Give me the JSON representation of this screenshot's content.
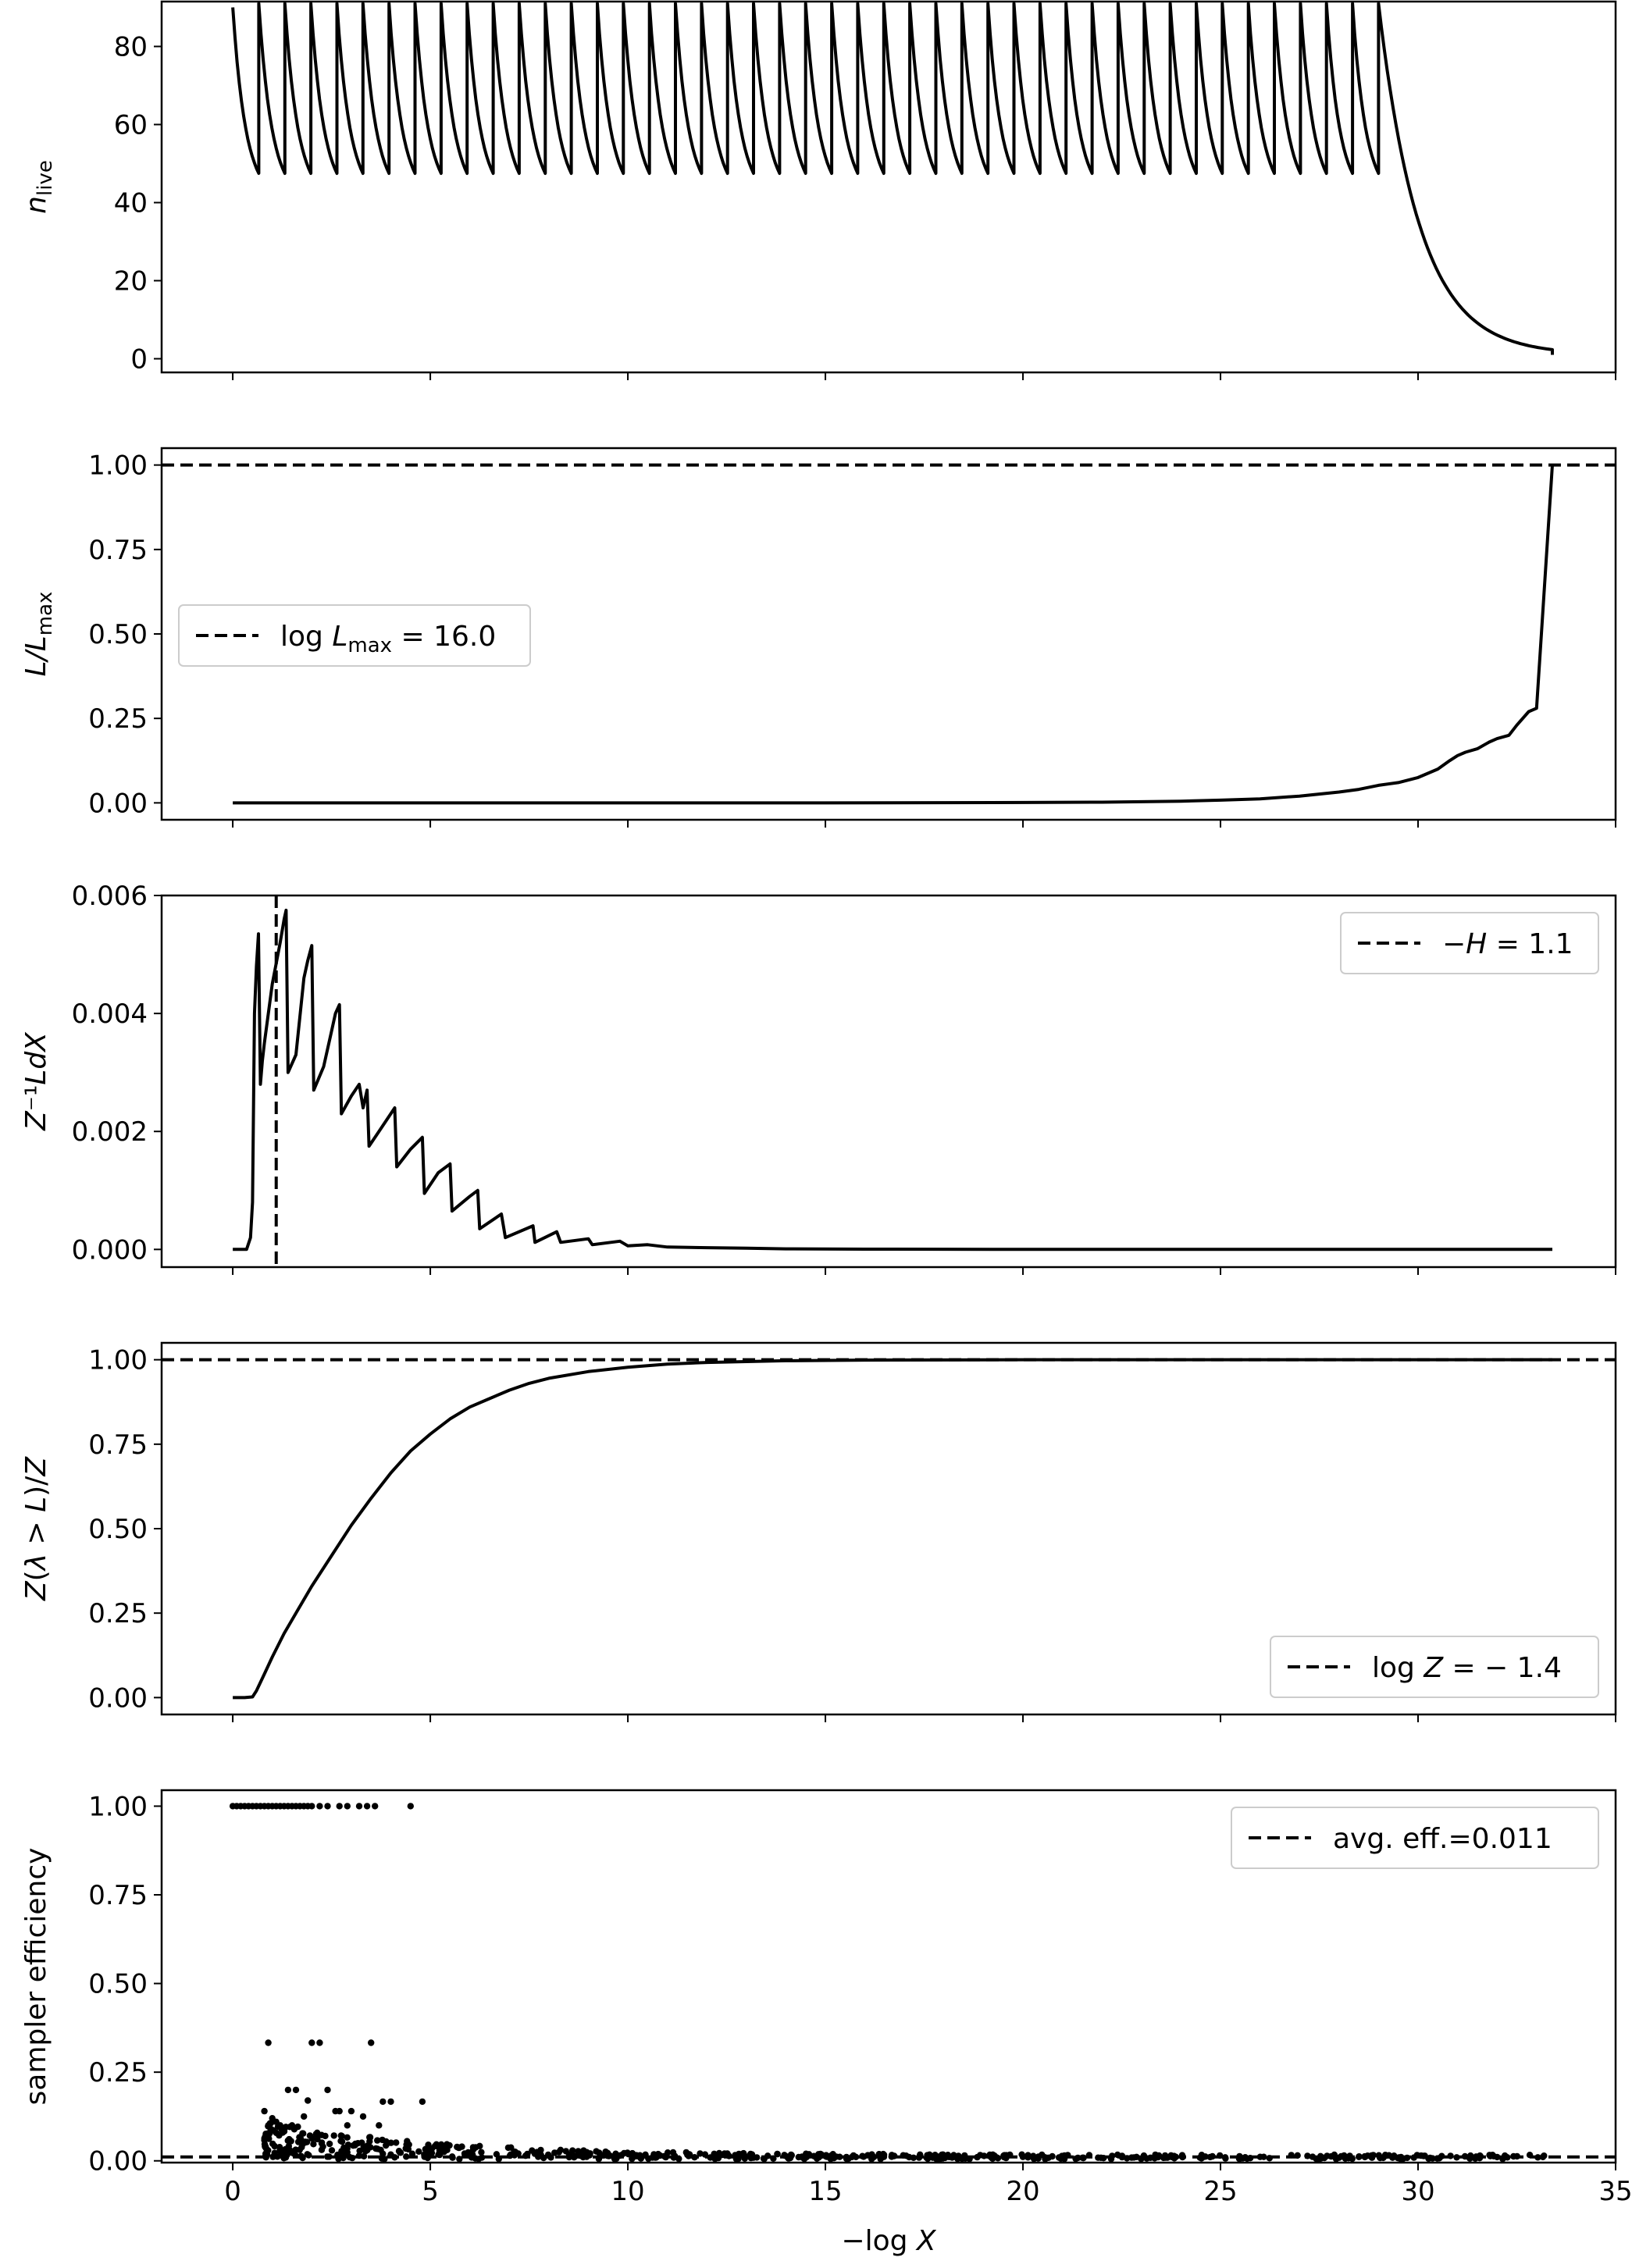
{
  "chart_data": [
    {
      "type": "line",
      "ylabel": "n_live",
      "ylabel_main": "n",
      "ylabel_sub": "live",
      "xlim": [
        -1.8,
        35
      ],
      "ylim": [
        -3.5,
        91.5
      ],
      "yticks": [
        0,
        20,
        40,
        60,
        80
      ],
      "ytick_labels": [
        "0",
        "20",
        "40",
        "60",
        "80"
      ],
      "xticks": [
        0,
        5,
        10,
        15,
        20,
        25,
        30,
        35
      ],
      "show_x_tick_labels": false,
      "legend": null,
      "series": [
        {
          "style": "solid",
          "sawtooth": {
            "start": 0.0,
            "end": 29.0,
            "period": 0.658,
            "high": 91,
            "low": 47.5,
            "first_value": 90
          },
          "tail": {
            "start": 29.0,
            "end": 33.4,
            "from": 91,
            "to": 1,
            "shape": "decay"
          }
        }
      ]
    },
    {
      "type": "line",
      "ylabel": "L/L_max",
      "ylabel_main": "L/L",
      "ylabel_sub": "max",
      "xlim": [
        -1.8,
        35
      ],
      "ylim": [
        -0.05,
        1.05
      ],
      "yticks": [
        0.0,
        0.25,
        0.5,
        0.75,
        1.0
      ],
      "ytick_labels": [
        "0.00",
        "0.25",
        "0.50",
        "0.75",
        "1.00"
      ],
      "xticks": [
        0,
        5,
        10,
        15,
        20,
        25,
        30,
        35
      ],
      "show_x_tick_labels": false,
      "legend": {
        "text": "log L_max = 16.0",
        "text_prefix": "log",
        "text_var": "L",
        "text_sub": "max",
        "text_suffix": " = 16.0",
        "placement": "center-left"
      },
      "hline": {
        "y": 1.0,
        "style": "dashed"
      },
      "series": [
        {
          "style": "solid",
          "x": [
            0,
            5,
            10,
            15,
            20,
            22,
            24,
            25,
            26,
            27,
            28,
            28.5,
            29,
            29.5,
            30,
            30.5,
            30.8,
            31.0,
            31.2,
            31.5,
            31.8,
            32.0,
            32.3,
            32.5,
            32.8,
            33.0,
            33.4
          ],
          "y": [
            0,
            0,
            0,
            0,
            0.001,
            0.002,
            0.005,
            0.008,
            0.012,
            0.02,
            0.032,
            0.04,
            0.052,
            0.06,
            0.075,
            0.1,
            0.125,
            0.14,
            0.15,
            0.16,
            0.18,
            0.19,
            0.2,
            0.23,
            0.27,
            0.28,
            1.0
          ]
        }
      ]
    },
    {
      "type": "line",
      "ylabel": "Z⁻¹LdX",
      "xlim": [
        -1.8,
        35
      ],
      "ylim": [
        -0.0003,
        0.006
      ],
      "yticks": [
        0.0,
        0.002,
        0.004,
        0.006
      ],
      "ytick_labels": [
        "0.000",
        "0.002",
        "0.004",
        "0.006"
      ],
      "xticks": [
        0,
        5,
        10,
        15,
        20,
        25,
        30,
        35
      ],
      "show_x_tick_labels": false,
      "legend": {
        "text": "−H = 1.1",
        "text_prefix": "−",
        "text_var": "H",
        "text_sub": "",
        "text_suffix": " = 1.1",
        "placement": "upper-right"
      },
      "vline": {
        "x": 1.1,
        "style": "dashed"
      },
      "series": [
        {
          "style": "solid",
          "x": [
            0,
            0.35,
            0.45,
            0.5,
            0.55,
            0.6,
            0.65,
            0.7,
            0.75,
            0.8,
            1.0,
            1.2,
            1.3,
            1.35,
            1.4,
            1.6,
            1.8,
            1.9,
            2.0,
            2.05,
            2.3,
            2.5,
            2.6,
            2.7,
            2.75,
            3.0,
            3.2,
            3.3,
            3.4,
            3.45,
            3.7,
            3.9,
            4.1,
            4.15,
            4.5,
            4.8,
            4.85,
            5.2,
            5.5,
            5.55,
            6.0,
            6.2,
            6.25,
            6.8,
            6.9,
            7.6,
            7.65,
            8.2,
            8.3,
            9.0,
            9.1,
            9.8,
            10.0,
            10.5,
            11.0,
            12.0,
            13.0,
            14.0,
            16.0,
            20.0,
            25.0,
            30.0,
            33.4
          ],
          "y": [
            0,
            0,
            0.0002,
            0.0008,
            0.004,
            0.0048,
            0.00535,
            0.0028,
            0.0032,
            0.0035,
            0.0045,
            0.0052,
            0.0056,
            0.00575,
            0.003,
            0.0033,
            0.0046,
            0.0049,
            0.00515,
            0.0027,
            0.0031,
            0.0037,
            0.004,
            0.00415,
            0.0023,
            0.0026,
            0.0028,
            0.0024,
            0.0027,
            0.00175,
            0.002,
            0.0022,
            0.0024,
            0.0014,
            0.0017,
            0.0019,
            0.00095,
            0.0013,
            0.00145,
            0.00065,
            0.0009,
            0.001,
            0.00035,
            0.0006,
            0.0002,
            0.0004,
            0.00012,
            0.0003,
            0.00012,
            0.00018,
            8e-05,
            0.00014,
            6e-05,
            8e-05,
            4e-05,
            3e-05,
            2e-05,
            1e-05,
            5e-06,
            0,
            0,
            0,
            0
          ]
        }
      ]
    },
    {
      "type": "line",
      "ylabel": "Z(λ > L)/Z",
      "xlim": [
        -1.8,
        35
      ],
      "ylim": [
        -0.05,
        1.05
      ],
      "yticks": [
        0.0,
        0.25,
        0.5,
        0.75,
        1.0
      ],
      "ytick_labels": [
        "0.00",
        "0.25",
        "0.50",
        "0.75",
        "1.00"
      ],
      "xticks": [
        0,
        5,
        10,
        15,
        20,
        25,
        30,
        35
      ],
      "show_x_tick_labels": false,
      "legend": {
        "text": "log Z = −1.4",
        "text_prefix": "log",
        "text_var": "Z",
        "text_sub": "",
        "text_suffix": " = − 1.4",
        "placement": "lower-right"
      },
      "hline": {
        "y": 1.0,
        "style": "dashed"
      },
      "series": [
        {
          "style": "solid",
          "x": [
            0,
            0.3,
            0.5,
            0.6,
            0.8,
            1.0,
            1.3,
            1.6,
            2.0,
            2.5,
            3.0,
            3.5,
            4.0,
            4.5,
            5.0,
            5.5,
            6.0,
            6.5,
            7.0,
            7.5,
            8.0,
            9.0,
            10.0,
            11.0,
            12.0,
            14.0,
            16.0,
            20.0,
            25.0,
            33.4
          ],
          "y": [
            0,
            0,
            0.002,
            0.02,
            0.07,
            0.12,
            0.19,
            0.25,
            0.33,
            0.42,
            0.51,
            0.59,
            0.665,
            0.73,
            0.78,
            0.825,
            0.86,
            0.885,
            0.91,
            0.93,
            0.945,
            0.965,
            0.978,
            0.987,
            0.992,
            0.997,
            0.999,
            1.0,
            1.0,
            1.0
          ]
        }
      ]
    },
    {
      "type": "scatter",
      "ylabel": "sampler efficiency",
      "xlabel": "−log X",
      "xlabel_prefix": "−log",
      "xlabel_var": "X",
      "xlim": [
        -1.8,
        35
      ],
      "ylim": [
        -0.005,
        1.045
      ],
      "yticks": [
        0.0,
        0.25,
        0.5,
        0.75,
        1.0
      ],
      "ytick_labels": [
        "0.00",
        "0.25",
        "0.50",
        "0.75",
        "1.00"
      ],
      "xticks": [
        0,
        5,
        10,
        15,
        20,
        25,
        30,
        35
      ],
      "xtick_labels": [
        "0",
        "5",
        "10",
        "15",
        "20",
        "25",
        "30",
        "35"
      ],
      "show_x_tick_labels": true,
      "legend": {
        "text": "avg. eff.=0.011",
        "text_prefix": "",
        "text_var": "",
        "text_sub": "",
        "text_suffix": "avg. eff.=0.011",
        "placement": "upper-right"
      },
      "hline": {
        "y": 0.011,
        "style": "dashed"
      },
      "series": [
        {
          "style": "points",
          "top_points": {
            "x": [
              0.0,
              0.1,
              0.2,
              0.3,
              0.4,
              0.5,
              0.6,
              0.7,
              0.8,
              0.9,
              1.0,
              1.1,
              1.2,
              1.3,
              1.4,
              1.5,
              1.6,
              1.7,
              1.8,
              1.9,
              2.0,
              2.2,
              2.4,
              2.7,
              2.9,
              3.2,
              3.4,
              3.6,
              4.5
            ],
            "y": 1.0
          },
          "mid_points": {
            "x": [
              0.9,
              2.0,
              2.2,
              3.5,
              0.8,
              1.0,
              1.4,
              1.6,
              1.9,
              2.4,
              2.7,
              3.0,
              3.8,
              4.0,
              4.8,
              1.1,
              1.5,
              1.8,
              2.6,
              3.3,
              0.9,
              1.2,
              2.9,
              3.7
            ],
            "y": [
              0.333,
              0.333,
              0.333,
              0.333,
              0.14,
              0.12,
              0.2,
              0.2,
              0.17,
              0.2,
              0.14,
              0.14,
              0.167,
              0.167,
              0.167,
              0.11,
              0.1,
              0.125,
              0.14,
              0.125,
              0.1,
              0.1,
              0.1,
              0.1
            ]
          },
          "cloud": {
            "x_start": 0.8,
            "x_end": 33.4,
            "max_at_start": 0.1,
            "decay": 0.25,
            "count": 620
          }
        }
      ]
    }
  ]
}
